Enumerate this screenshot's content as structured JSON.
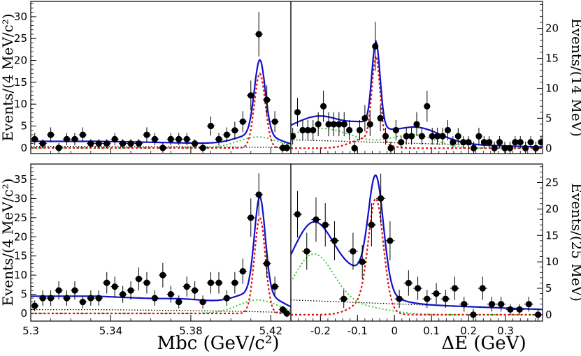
{
  "figure": {
    "ylabel_left_top": "Events/(4 MeV/c²)",
    "ylabel_left_bottom": "Events/(4 MeV/c²)",
    "ylabel_right_top": "Events/(14 MeV)",
    "ylabel_right_bottom": "Events/(25 MeV)",
    "xlabel_left": "Mbc (GeV/c²)",
    "xlabel_right": "ΔE (GeV)"
  },
  "colors": {
    "total_fit": "#1010cc",
    "signal": "#dd1111",
    "peaking_bkg": "#22cc22",
    "continuum_bkg": "#000000",
    "data": "#000000"
  },
  "chart_data": [
    {
      "panel": "top-left",
      "type": "scatter",
      "xlabel": "",
      "ylabel": "Events/(4 MeV/c²)",
      "xlim": [
        5.3,
        5.43
      ],
      "ylim": [
        -1.3,
        33.5
      ],
      "xticks": [],
      "yticks": [
        0,
        5,
        10,
        15,
        20,
        25,
        30
      ],
      "points": [
        {
          "x": 5.302,
          "y": 2,
          "e": 1.4
        },
        {
          "x": 5.306,
          "y": 1,
          "e": 1.0
        },
        {
          "x": 5.31,
          "y": 3,
          "e": 1.7
        },
        {
          "x": 5.314,
          "y": 0,
          "e": 1.1
        },
        {
          "x": 5.318,
          "y": 2,
          "e": 1.4
        },
        {
          "x": 5.322,
          "y": 2,
          "e": 1.4
        },
        {
          "x": 5.326,
          "y": 3,
          "e": 1.7
        },
        {
          "x": 5.33,
          "y": 1,
          "e": 1.0
        },
        {
          "x": 5.334,
          "y": 1,
          "e": 1.0
        },
        {
          "x": 5.338,
          "y": 1,
          "e": 1.0
        },
        {
          "x": 5.342,
          "y": 2,
          "e": 1.4
        },
        {
          "x": 5.346,
          "y": 1,
          "e": 1.0
        },
        {
          "x": 5.35,
          "y": 1,
          "e": 1.0
        },
        {
          "x": 5.354,
          "y": 1,
          "e": 1.0
        },
        {
          "x": 5.358,
          "y": 3,
          "e": 1.7
        },
        {
          "x": 5.362,
          "y": 2,
          "e": 1.4
        },
        {
          "x": 5.366,
          "y": 0,
          "e": 1.1
        },
        {
          "x": 5.37,
          "y": 2,
          "e": 1.4
        },
        {
          "x": 5.374,
          "y": 2,
          "e": 1.4
        },
        {
          "x": 5.378,
          "y": 2,
          "e": 1.4
        },
        {
          "x": 5.382,
          "y": 1,
          "e": 1.0
        },
        {
          "x": 5.386,
          "y": 0,
          "e": 1.1
        },
        {
          "x": 5.39,
          "y": 5,
          "e": 2.2
        },
        {
          "x": 5.394,
          "y": 2,
          "e": 1.4
        },
        {
          "x": 5.398,
          "y": 3,
          "e": 1.7
        },
        {
          "x": 5.402,
          "y": 4,
          "e": 2.0
        },
        {
          "x": 5.406,
          "y": 6,
          "e": 2.4
        },
        {
          "x": 5.41,
          "y": 12,
          "e": 3.4
        },
        {
          "x": 5.414,
          "y": 26,
          "e": 5.1
        },
        {
          "x": 5.418,
          "y": 11,
          "e": 3.3
        },
        {
          "x": 5.422,
          "y": 6,
          "e": 2.4
        },
        {
          "x": 5.426,
          "y": 0,
          "e": 1.1
        },
        {
          "x": 5.428,
          "y": 0,
          "e": 1.0
        }
      ],
      "curves": {
        "total_peak": 20,
        "signal_peak": 17,
        "peak_x": 5.414,
        "baseline": 1.5
      }
    },
    {
      "panel": "top-right",
      "type": "scatter",
      "xlabel": "",
      "ylabel": "Events/(14 MeV)",
      "xlim": [
        -0.28,
        0.4
      ],
      "ylim": [
        -0.9,
        24.5
      ],
      "xticks": [],
      "yticks": [
        0,
        5,
        10,
        15,
        20
      ],
      "points": [
        {
          "x": -0.275,
          "y": 2,
          "e": 1.4
        },
        {
          "x": -0.262,
          "y": 6,
          "e": 2.4
        },
        {
          "x": -0.248,
          "y": 3,
          "e": 1.7
        },
        {
          "x": -0.234,
          "y": 3,
          "e": 1.7
        },
        {
          "x": -0.22,
          "y": 3,
          "e": 1.7
        },
        {
          "x": -0.206,
          "y": 4,
          "e": 2.0
        },
        {
          "x": -0.192,
          "y": 7,
          "e": 2.6
        },
        {
          "x": -0.178,
          "y": 4,
          "e": 2.0
        },
        {
          "x": -0.164,
          "y": 4,
          "e": 2.0
        },
        {
          "x": -0.15,
          "y": 4,
          "e": 2.0
        },
        {
          "x": -0.136,
          "y": 4,
          "e": 2.0
        },
        {
          "x": -0.122,
          "y": 3,
          "e": 1.7
        },
        {
          "x": -0.108,
          "y": 0,
          "e": 1.1
        },
        {
          "x": -0.094,
          "y": 3,
          "e": 1.7
        },
        {
          "x": -0.08,
          "y": 5,
          "e": 2.2
        },
        {
          "x": -0.066,
          "y": 4,
          "e": 2.0
        },
        {
          "x": -0.052,
          "y": 17,
          "e": 4.1
        },
        {
          "x": -0.038,
          "y": 5,
          "e": 2.2
        },
        {
          "x": -0.024,
          "y": 2,
          "e": 1.4
        },
        {
          "x": -0.01,
          "y": 0,
          "e": 1.1
        },
        {
          "x": 0.004,
          "y": 3,
          "e": 1.7
        },
        {
          "x": 0.018,
          "y": 1,
          "e": 1.0
        },
        {
          "x": 0.032,
          "y": 2,
          "e": 1.4
        },
        {
          "x": 0.046,
          "y": 2,
          "e": 1.4
        },
        {
          "x": 0.06,
          "y": 4,
          "e": 2.0
        },
        {
          "x": 0.074,
          "y": 2,
          "e": 1.4
        },
        {
          "x": 0.088,
          "y": 7,
          "e": 2.6
        },
        {
          "x": 0.102,
          "y": 2,
          "e": 1.4
        },
        {
          "x": 0.116,
          "y": 2,
          "e": 1.4
        },
        {
          "x": 0.13,
          "y": 2,
          "e": 1.4
        },
        {
          "x": 0.144,
          "y": 3,
          "e": 1.7
        },
        {
          "x": 0.158,
          "y": 1,
          "e": 1.0
        },
        {
          "x": 0.172,
          "y": 2,
          "e": 1.4
        },
        {
          "x": 0.186,
          "y": 1,
          "e": 1.0
        },
        {
          "x": 0.2,
          "y": 1,
          "e": 1.0
        },
        {
          "x": 0.214,
          "y": 0,
          "e": 1.1
        },
        {
          "x": 0.228,
          "y": 2,
          "e": 1.4
        },
        {
          "x": 0.242,
          "y": 1,
          "e": 1.0
        },
        {
          "x": 0.256,
          "y": 1,
          "e": 1.0
        },
        {
          "x": 0.27,
          "y": 0,
          "e": 1.1
        },
        {
          "x": 0.284,
          "y": 1,
          "e": 1.0
        },
        {
          "x": 0.298,
          "y": 0,
          "e": 1.1
        },
        {
          "x": 0.312,
          "y": 0,
          "e": 1.1
        },
        {
          "x": 0.326,
          "y": 1,
          "e": 1.0
        },
        {
          "x": 0.34,
          "y": 1,
          "e": 1.0
        },
        {
          "x": 0.354,
          "y": 0,
          "e": 1.1
        },
        {
          "x": 0.368,
          "y": 1,
          "e": 1.0
        },
        {
          "x": 0.382,
          "y": 0,
          "e": 1.1
        },
        {
          "x": 0.396,
          "y": 1,
          "e": 1.0
        }
      ],
      "curves": {
        "total_peak": 17,
        "signal_peak": 14,
        "peak_x": -0.05,
        "baseline": 2
      }
    },
    {
      "panel": "bottom-left",
      "type": "scatter",
      "xlabel": "Mbc (GeV/c²)",
      "ylabel": "Events/(4 MeV/c²)",
      "xlim": [
        5.3,
        5.43
      ],
      "ylim": [
        -2,
        39
      ],
      "xticks": [
        5.3,
        5.34,
        5.38,
        5.42
      ],
      "xtick_labels": [
        "5.3",
        "5.34",
        "5.38",
        "5.42"
      ],
      "yticks": [
        0,
        5,
        10,
        15,
        20,
        25,
        30,
        35
      ],
      "points": [
        {
          "x": 5.302,
          "y": 2,
          "e": 1.4
        },
        {
          "x": 5.306,
          "y": 4,
          "e": 2.0
        },
        {
          "x": 5.31,
          "y": 4,
          "e": 2.0
        },
        {
          "x": 5.314,
          "y": 6,
          "e": 2.4
        },
        {
          "x": 5.318,
          "y": 4,
          "e": 2.0
        },
        {
          "x": 5.322,
          "y": 6,
          "e": 2.4
        },
        {
          "x": 5.326,
          "y": 3,
          "e": 1.7
        },
        {
          "x": 5.33,
          "y": 4,
          "e": 2.0
        },
        {
          "x": 5.334,
          "y": 4,
          "e": 2.0
        },
        {
          "x": 5.338,
          "y": 8,
          "e": 2.8
        },
        {
          "x": 5.342,
          "y": 7,
          "e": 2.6
        },
        {
          "x": 5.346,
          "y": 5,
          "e": 2.2
        },
        {
          "x": 5.35,
          "y": 6,
          "e": 2.4
        },
        {
          "x": 5.354,
          "y": 9,
          "e": 3.0
        },
        {
          "x": 5.358,
          "y": 8,
          "e": 2.8
        },
        {
          "x": 5.362,
          "y": 4,
          "e": 2.0
        },
        {
          "x": 5.366,
          "y": 10,
          "e": 3.2
        },
        {
          "x": 5.37,
          "y": 5,
          "e": 2.2
        },
        {
          "x": 5.374,
          "y": 3,
          "e": 1.7
        },
        {
          "x": 5.378,
          "y": 7,
          "e": 2.6
        },
        {
          "x": 5.382,
          "y": 6,
          "e": 2.4
        },
        {
          "x": 5.386,
          "y": 3,
          "e": 1.7
        },
        {
          "x": 5.39,
          "y": 8,
          "e": 2.8
        },
        {
          "x": 5.394,
          "y": 8,
          "e": 2.8
        },
        {
          "x": 5.398,
          "y": 4,
          "e": 2.0
        },
        {
          "x": 5.402,
          "y": 8,
          "e": 2.8
        },
        {
          "x": 5.406,
          "y": 11,
          "e": 3.3
        },
        {
          "x": 5.41,
          "y": 25,
          "e": 5.0
        },
        {
          "x": 5.414,
          "y": 31,
          "e": 5.6
        },
        {
          "x": 5.418,
          "y": 13,
          "e": 3.6
        },
        {
          "x": 5.422,
          "y": 7,
          "e": 2.6
        },
        {
          "x": 5.426,
          "y": 1,
          "e": 1.0
        },
        {
          "x": 5.428,
          "y": 0,
          "e": 1.0
        }
      ],
      "curves": {
        "total_peak": 29,
        "signal_peak": 25,
        "peak_x": 5.414,
        "baseline": 4.5
      }
    },
    {
      "panel": "bottom-right",
      "type": "scatter",
      "xlabel": "ΔE (GeV)",
      "ylabel": "Events/(25 MeV)",
      "xlim": [
        -0.28,
        0.4
      ],
      "ylim": [
        -1.2,
        28.5
      ],
      "xticks": [
        -0.2,
        -0.1,
        0,
        0.1,
        0.2,
        0.3
      ],
      "xtick_labels": [
        "-0.2",
        "-0.1",
        "0",
        "0.1",
        "0.2",
        "0.3"
      ],
      "yticks": [
        0,
        5,
        10,
        15,
        20,
        25
      ],
      "points": [
        {
          "x": -0.262,
          "y": 19,
          "e": 4.4
        },
        {
          "x": -0.237,
          "y": 12,
          "e": 3.5
        },
        {
          "x": -0.212,
          "y": 18,
          "e": 4.2
        },
        {
          "x": -0.187,
          "y": 17,
          "e": 4.1
        },
        {
          "x": -0.162,
          "y": 14,
          "e": 3.7
        },
        {
          "x": -0.137,
          "y": 3,
          "e": 1.7
        },
        {
          "x": -0.112,
          "y": 12,
          "e": 3.5
        },
        {
          "x": -0.087,
          "y": 10,
          "e": 3.2
        },
        {
          "x": -0.062,
          "y": 17,
          "e": 4.1
        },
        {
          "x": -0.037,
          "y": 22,
          "e": 4.7
        },
        {
          "x": -0.012,
          "y": 14,
          "e": 3.7
        },
        {
          "x": 0.013,
          "y": 3,
          "e": 1.7
        },
        {
          "x": 0.038,
          "y": 6,
          "e": 2.4
        },
        {
          "x": 0.063,
          "y": 5,
          "e": 2.2
        },
        {
          "x": 0.088,
          "y": 3,
          "e": 1.7
        },
        {
          "x": 0.113,
          "y": 4,
          "e": 2.0
        },
        {
          "x": 0.138,
          "y": 3,
          "e": 1.7
        },
        {
          "x": 0.163,
          "y": 5,
          "e": 2.2
        },
        {
          "x": 0.188,
          "y": 2,
          "e": 1.4
        },
        {
          "x": 0.213,
          "y": 0,
          "e": 1.1
        },
        {
          "x": 0.238,
          "y": 5,
          "e": 2.2
        },
        {
          "x": 0.263,
          "y": 2,
          "e": 1.4
        },
        {
          "x": 0.288,
          "y": 2,
          "e": 1.4
        },
        {
          "x": 0.313,
          "y": 1,
          "e": 1.0
        },
        {
          "x": 0.338,
          "y": 1,
          "e": 1.0
        },
        {
          "x": 0.363,
          "y": 2,
          "e": 1.4
        },
        {
          "x": 0.388,
          "y": 0,
          "e": 1.1
        }
      ],
      "curves": {
        "total_peak": 23,
        "signal_peak": 20,
        "peak_x": -0.05,
        "baseline": 2.8
      }
    }
  ]
}
